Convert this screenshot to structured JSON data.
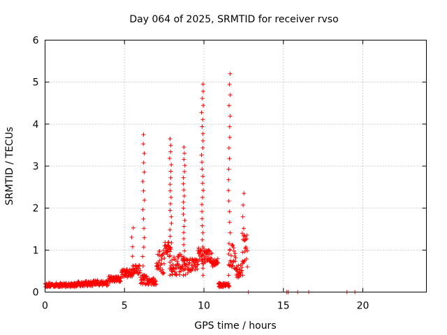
{
  "chart_data": {
    "type": "scatter",
    "title": "Day 064 of 2025, SRMTID for receiver rvso",
    "xlabel": "GPS time / hours",
    "ylabel": "SRMTID / TECUs",
    "xlim": [
      0,
      24
    ],
    "ylim": [
      0,
      6
    ],
    "x_ticks": [
      0,
      5,
      10,
      15,
      20
    ],
    "y_ticks": [
      0,
      1,
      2,
      3,
      4,
      5,
      6
    ],
    "grid": true,
    "marker": "+",
    "series_color": "#ff0000",
    "baseline_segments": [
      {
        "x_start": 0.0,
        "x_end": 2.0,
        "level": 0.17,
        "jitter": 0.05
      },
      {
        "x_start": 2.0,
        "x_end": 3.0,
        "level": 0.2,
        "jitter": 0.06
      },
      {
        "x_start": 3.0,
        "x_end": 4.0,
        "level": 0.22,
        "jitter": 0.07
      },
      {
        "x_start": 4.0,
        "x_end": 4.8,
        "level": 0.3,
        "jitter": 0.08
      },
      {
        "x_start": 4.8,
        "x_end": 5.5,
        "level": 0.45,
        "jitter": 0.1
      },
      {
        "x_start": 5.5,
        "x_end": 6.0,
        "level": 0.55,
        "jitter": 0.12
      },
      {
        "x_start": 6.0,
        "x_end": 6.4,
        "level": 0.3,
        "jitter": 0.12
      },
      {
        "x_start": 6.4,
        "x_end": 7.0,
        "level": 0.25,
        "jitter": 0.08
      },
      {
        "x_start": 7.0,
        "x_end": 7.5,
        "level": 0.7,
        "jitter": 0.3
      },
      {
        "x_start": 7.5,
        "x_end": 7.9,
        "level": 1.0,
        "jitter": 0.2
      },
      {
        "x_start": 7.9,
        "x_end": 8.6,
        "level": 0.65,
        "jitter": 0.25
      },
      {
        "x_start": 8.6,
        "x_end": 9.0,
        "level": 0.6,
        "jitter": 0.2
      },
      {
        "x_start": 9.0,
        "x_end": 9.6,
        "level": 0.65,
        "jitter": 0.15
      },
      {
        "x_start": 9.6,
        "x_end": 10.0,
        "level": 0.85,
        "jitter": 0.2
      },
      {
        "x_start": 10.0,
        "x_end": 10.5,
        "level": 0.85,
        "jitter": 0.15
      },
      {
        "x_start": 10.5,
        "x_end": 10.9,
        "level": 0.7,
        "jitter": 0.1
      },
      {
        "x_start": 10.9,
        "x_end": 11.6,
        "level": 0.17,
        "jitter": 0.05
      },
      {
        "x_start": 11.6,
        "x_end": 12.0,
        "level": 0.85,
        "jitter": 0.3
      },
      {
        "x_start": 12.0,
        "x_end": 12.4,
        "level": 0.5,
        "jitter": 0.15
      },
      {
        "x_start": 12.4,
        "x_end": 12.75,
        "level": 1.0,
        "jitter": 0.4
      }
    ],
    "spikes": [
      {
        "x": 5.5,
        "peak": 1.53,
        "count": 6
      },
      {
        "x": 6.2,
        "peak": 3.75,
        "count": 16
      },
      {
        "x": 7.9,
        "peak": 3.65,
        "count": 22
      },
      {
        "x": 8.75,
        "peak": 3.45,
        "count": 22
      },
      {
        "x": 9.9,
        "peak": 4.95,
        "count": 28
      },
      {
        "x": 11.6,
        "peak": 5.2,
        "count": 20
      },
      {
        "x": 12.5,
        "peak": 2.35,
        "count": 8
      }
    ],
    "sparse_points": [
      {
        "x": 12.8,
        "y": 0.0
      },
      {
        "x": 15.2,
        "y": 0.0
      },
      {
        "x": 15.3,
        "y": 0.0
      },
      {
        "x": 15.9,
        "y": 0.0
      },
      {
        "x": 16.6,
        "y": 0.0
      },
      {
        "x": 19.0,
        "y": 0.0
      },
      {
        "x": 19.5,
        "y": 0.0
      }
    ]
  }
}
